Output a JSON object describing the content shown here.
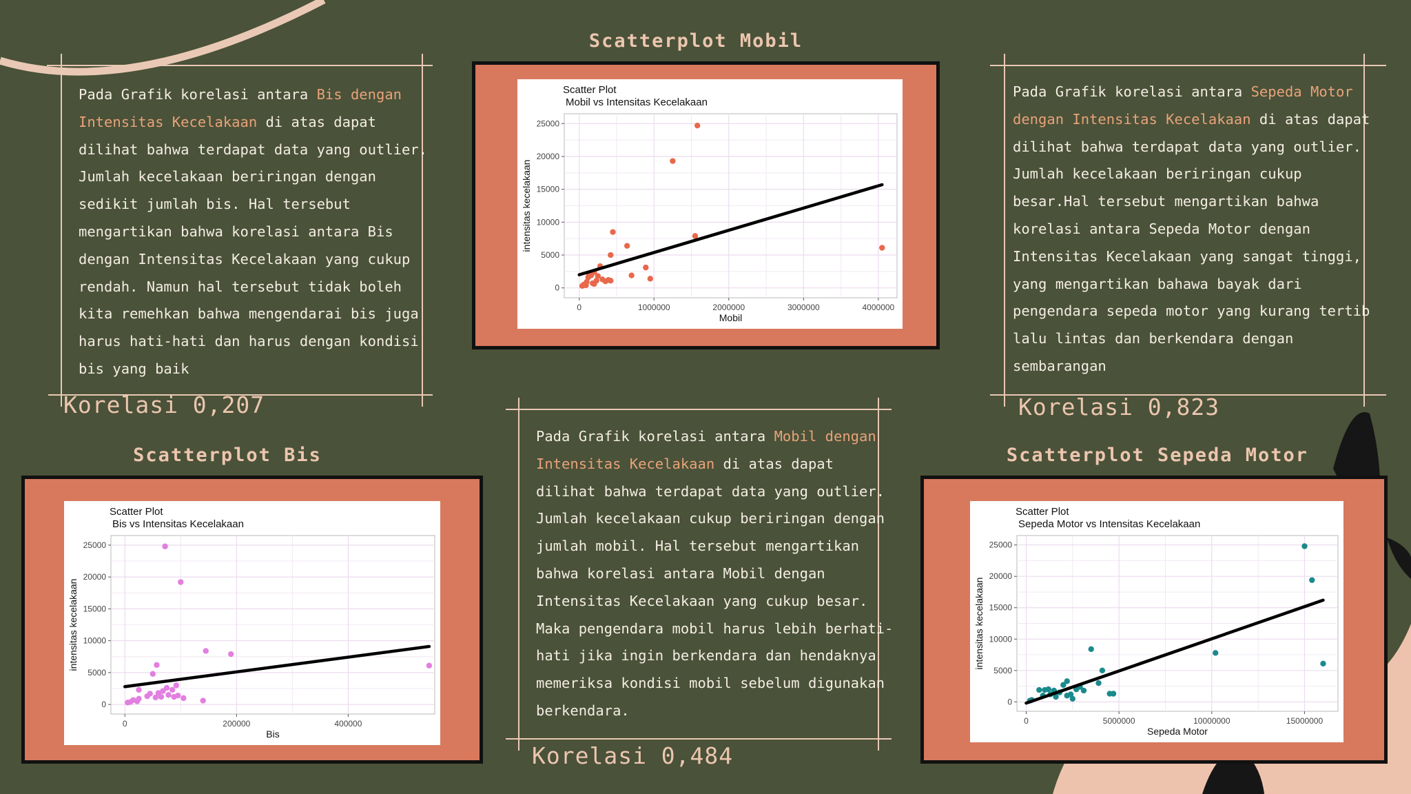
{
  "texts": {
    "bis": [
      {
        "t": "Pada Grafik korelasi antara "
      },
      {
        "t": "Bis dengan",
        "h": true
      },
      {
        "t": "\n"
      },
      {
        "t": "Intensitas Kecelakaan",
        "h": true
      },
      {
        "t": " di atas dapat\ndilihat bahwa terdapat data yang outlier.\nJumlah kecelakaan beriringan dengan\nsedikit jumlah bis. Hal tersebut\nmengartikan bahwa korelasi antara Bis\ndengan Intensitas Kecelakaan yang cukup\nrendah. Namun hal tersebut tidak boleh\nkita remehkan bahwa mengendarai bis juga\nharus hati-hati dan harus dengan kondisi\nbis yang baik"
      }
    ],
    "mobil": [
      {
        "t": "Pada Grafik korelasi antara "
      },
      {
        "t": "Mobil dengan",
        "h": true
      },
      {
        "t": "\n"
      },
      {
        "t": "Intensitas Kecelakaan",
        "h": true
      },
      {
        "t": " di atas dapat\ndilihat bahwa terdapat data yang outlier.\nJumlah kecelakaan cukup beriringan dengan\njumlah mobil. Hal tersebut mengartikan\nbahwa korelasi antara Mobil dengan\nIntensitas Kecelakaan yang cukup besar.\nMaka pengendara mobil harus lebih berhati-\nhati jika ingin berkendara dan hendaknya\nmemeriksa kondisi mobil sebelum digunakan\nberkendara."
      }
    ],
    "motor": [
      {
        "t": "Pada Grafik korelasi antara "
      },
      {
        "t": "Sepeda Motor",
        "h": true
      },
      {
        "t": "\n"
      },
      {
        "t": "dengan Intensitas Kecelakaan",
        "h": true
      },
      {
        "t": " di atas dapat\ndilihat bahwa terdapat data yang outlier.\nJumlah kecelakaan beriringan cukup\nbesar.Hal tersebut mengartikan bahwa\nkorelasi antara Sepeda Motor dengan\nIntensitas Kecelakaan yang sangat tinggi,\nyang mengartikan bahawa bayak dari\npengendara sepeda motor yang kurang tertib\nlalu lintas dan berkendara dengan\nsembarangan"
      }
    ]
  },
  "korelasi": {
    "bis": "Korelasi 0,207",
    "mobil": "Korelasi 0,484",
    "motor": "Korelasi 0,823"
  },
  "section_titles": {
    "mobil": "Scatterplot Mobil",
    "bis": "Scatterplot Bis",
    "motor": "Scatterplot Sepeda Motor"
  },
  "colors": {
    "background": "#4a5239",
    "accent": "#e8a37a",
    "chart_frame": "#d8795e",
    "mobil_points": "#e8684c",
    "bis_points": "#e27fe0",
    "motor_points": "#1b8a8c"
  },
  "chart_data": [
    {
      "id": "mobil",
      "type": "scatter",
      "title": "Scatter Plot",
      "subtitle": "Mobil vs Intensitas Kecelakaan",
      "xlabel": "Mobil",
      "ylabel": "intensitas kecelakaan",
      "xlim": [
        -200000,
        4250000
      ],
      "ylim": [
        -1500,
        26500
      ],
      "xticks": [
        0,
        1000000,
        2000000,
        3000000,
        4000000
      ],
      "xticklabels": [
        "0",
        "1000000",
        "2000000",
        "3000000",
        "4000000"
      ],
      "yticks": [
        0,
        5000,
        10000,
        15000,
        20000,
        25000
      ],
      "yticklabels": [
        "0",
        "5000",
        "10000",
        "15000",
        "20000",
        "25000"
      ],
      "color": "#e8684c",
      "points": [
        [
          1580000,
          24700
        ],
        [
          1250000,
          19300
        ],
        [
          450000,
          8500
        ],
        [
          640000,
          6400
        ],
        [
          1550000,
          7900
        ],
        [
          4050000,
          6100
        ],
        [
          420000,
          5000
        ],
        [
          890000,
          3100
        ],
        [
          280000,
          3300
        ],
        [
          950000,
          1400
        ],
        [
          700000,
          1900
        ],
        [
          200000,
          2400
        ],
        [
          250000,
          1800
        ],
        [
          130000,
          2100
        ],
        [
          310000,
          1300
        ],
        [
          350000,
          1000
        ],
        [
          390000,
          1200
        ],
        [
          420000,
          1100
        ],
        [
          100000,
          900
        ],
        [
          180000,
          700
        ],
        [
          230000,
          1100
        ],
        [
          60000,
          500
        ],
        [
          40000,
          300
        ],
        [
          90000,
          400
        ],
        [
          120000,
          1600
        ],
        [
          160000,
          1900
        ],
        [
          200000,
          600
        ]
      ],
      "trend": [
        [
          0,
          2000
        ],
        [
          4050000,
          15700
        ]
      ]
    },
    {
      "id": "bis",
      "type": "scatter",
      "title": "Scatter Plot",
      "subtitle": "Bis vs Intensitas Kecelakaan",
      "xlabel": "Bis",
      "ylabel": "intensitas kecelakaan",
      "xlim": [
        -25000,
        555000
      ],
      "ylim": [
        -1500,
        26500
      ],
      "xticks": [
        0,
        200000,
        400000
      ],
      "xticklabels": [
        "0",
        "200000",
        "400000"
      ],
      "yticks": [
        0,
        5000,
        10000,
        15000,
        20000,
        25000
      ],
      "yticklabels": [
        "0",
        "5000",
        "10000",
        "15000",
        "20000",
        "25000"
      ],
      "color": "#e27fe0",
      "points": [
        [
          72000,
          24800
        ],
        [
          100000,
          19200
        ],
        [
          145000,
          8400
        ],
        [
          190000,
          7900
        ],
        [
          545000,
          6100
        ],
        [
          57000,
          6200
        ],
        [
          50000,
          4800
        ],
        [
          92000,
          3000
        ],
        [
          75000,
          2600
        ],
        [
          25000,
          2300
        ],
        [
          105000,
          1000
        ],
        [
          140000,
          600
        ],
        [
          60000,
          1800
        ],
        [
          65000,
          1200
        ],
        [
          68000,
          2100
        ],
        [
          78000,
          1500
        ],
        [
          88000,
          1200
        ],
        [
          45000,
          1700
        ],
        [
          40000,
          1300
        ],
        [
          25000,
          900
        ],
        [
          15000,
          700
        ],
        [
          10000,
          400
        ],
        [
          5000,
          300
        ],
        [
          22000,
          500
        ],
        [
          85000,
          2300
        ],
        [
          95000,
          1400
        ],
        [
          55000,
          1100
        ]
      ],
      "trend": [
        [
          0,
          2800
        ],
        [
          545000,
          9100
        ]
      ]
    },
    {
      "id": "motor",
      "type": "scatter",
      "title": "Scatter Plot",
      "subtitle": "Sepeda Motor vs Intensitas Kecelakaan",
      "xlabel": "Sepeda Motor",
      "ylabel": "intensitas kecelakaan",
      "xlim": [
        -500000,
        16800000
      ],
      "ylim": [
        -1500,
        26500
      ],
      "xticks": [
        0,
        5000000,
        10000000,
        15000000
      ],
      "xticklabels": [
        "0",
        "5000000",
        "10000000",
        "15000000"
      ],
      "yticks": [
        0,
        5000,
        10000,
        15000,
        20000,
        25000
      ],
      "yticklabels": [
        "0",
        "5000",
        "10000",
        "15000",
        "20000",
        "25000"
      ],
      "color": "#1b8a8c",
      "points": [
        [
          15000000,
          24800
        ],
        [
          15400000,
          19400
        ],
        [
          3500000,
          8400
        ],
        [
          10200000,
          7800
        ],
        [
          16000000,
          6100
        ],
        [
          4100000,
          5000
        ],
        [
          2200000,
          3300
        ],
        [
          3900000,
          3000
        ],
        [
          4500000,
          1300
        ],
        [
          4700000,
          1300
        ],
        [
          1200000,
          2000
        ],
        [
          1500000,
          1800
        ],
        [
          1800000,
          1500
        ],
        [
          900000,
          1000
        ],
        [
          1300000,
          1200
        ],
        [
          2400000,
          1200
        ],
        [
          2700000,
          2000
        ],
        [
          2900000,
          2400
        ],
        [
          2500000,
          500
        ],
        [
          700000,
          1900
        ],
        [
          300000,
          300
        ],
        [
          200000,
          200
        ],
        [
          1000000,
          1900
        ],
        [
          2000000,
          2700
        ],
        [
          1600000,
          800
        ],
        [
          3100000,
          1800
        ],
        [
          2200000,
          1000
        ]
      ],
      "trend": [
        [
          0,
          -200
        ],
        [
          16000000,
          16200
        ]
      ]
    }
  ]
}
